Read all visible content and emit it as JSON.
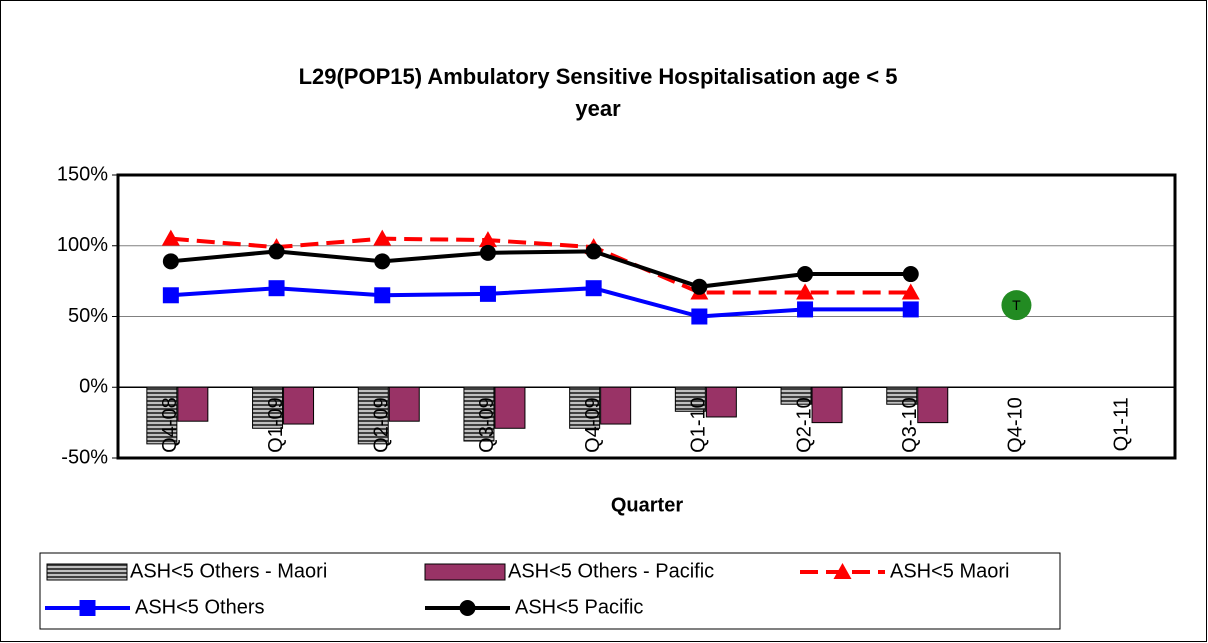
{
  "chart_data": {
    "type": "bar-line",
    "title": [
      "L29(POP15) Ambulatory Sensitive Hospitalisation age < 5",
      "year"
    ],
    "x_label": "Quarter",
    "categories": [
      "Q4-08",
      "Q1-09",
      "Q2-09",
      "Q3-09",
      "Q4-09",
      "Q1-10",
      "Q2-10",
      "Q3-10",
      "Q4-10",
      "Q1-11"
    ],
    "series": [
      {
        "name": "ASH<5 Others - Maori",
        "kind": "bar",
        "color": "#808080",
        "values": [
          -40,
          -29,
          -40,
          -38,
          -29,
          -17,
          -12,
          -12,
          null,
          null
        ]
      },
      {
        "name": "ASH<5 Others - Pacific",
        "kind": "bar",
        "color": "#993366",
        "values": [
          -24,
          -26,
          -24,
          -29,
          -26,
          -21,
          -25,
          -25,
          null,
          null
        ]
      },
      {
        "name": "ASH<5 Maori",
        "kind": "line",
        "marker": "triangle",
        "dashed": true,
        "color": "#ff0000",
        "values": [
          105,
          99,
          105,
          104,
          99,
          67,
          67,
          67,
          null,
          null
        ]
      },
      {
        "name": "ASH<5 Others",
        "kind": "line",
        "marker": "square",
        "dashed": false,
        "color": "#0000ff",
        "values": [
          65,
          70,
          65,
          66,
          70,
          50,
          55,
          55,
          null,
          null
        ]
      },
      {
        "name": "ASH<5 Pacific",
        "kind": "line",
        "marker": "circle",
        "dashed": false,
        "color": "#000000",
        "values": [
          89,
          96,
          89,
          95,
          96,
          71,
          80,
          80,
          null,
          null
        ]
      }
    ],
    "annotations": [
      {
        "text": "T",
        "x": "Q4-10",
        "y": 58,
        "color": "#228b22"
      }
    ],
    "ylim": [
      -50,
      150
    ],
    "yticks": [
      {
        "value": -50,
        "label": "-50%"
      },
      {
        "value": 0,
        "label": "0%"
      },
      {
        "value": 50,
        "label": "50%"
      },
      {
        "value": 100,
        "label": "100%"
      },
      {
        "value": 150,
        "label": "150%"
      }
    ],
    "grid": true
  }
}
